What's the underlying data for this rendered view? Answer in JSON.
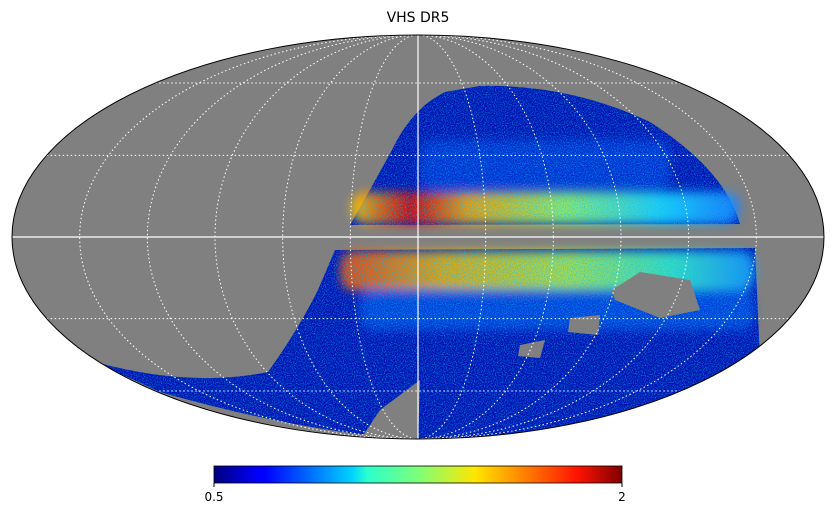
{
  "chart_data": {
    "type": "map",
    "title": "VHS DR5",
    "projection": "mollweide",
    "grid": true,
    "colorbar": {
      "colormap": "jet",
      "clim": [
        0.5,
        2
      ],
      "ticks": [
        0.5,
        2
      ]
    }
  }
}
